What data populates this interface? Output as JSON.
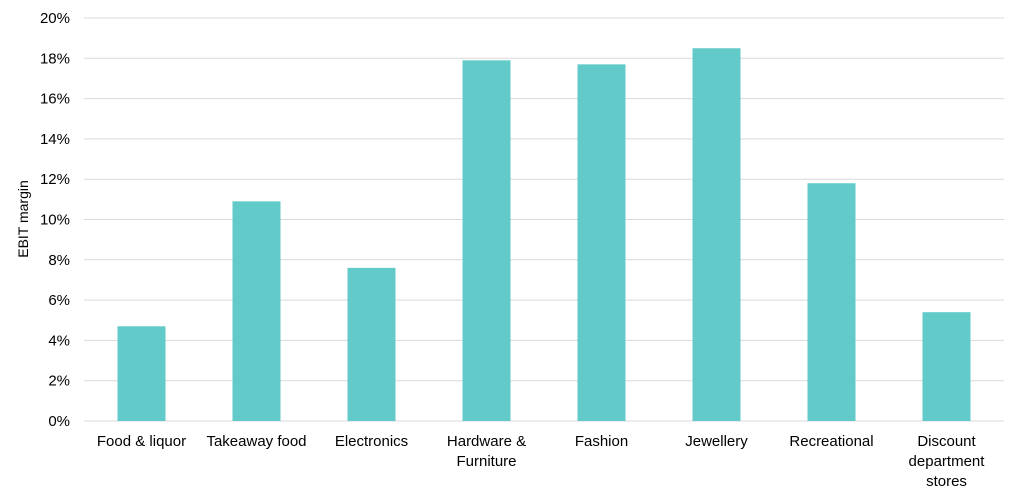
{
  "chart_data": {
    "type": "bar",
    "title": "",
    "xlabel": "",
    "ylabel": "EBIT margin",
    "categories": [
      "Food & liquor",
      "Takeaway food",
      "Electronics",
      "Hardware & Furniture",
      "Fashion",
      "Jewellery",
      "Recreational",
      "Discount department stores"
    ],
    "category_lines": [
      [
        "Food & liquor"
      ],
      [
        "Takeaway food"
      ],
      [
        "Electronics"
      ],
      [
        "Hardware &",
        "Furniture"
      ],
      [
        "Fashion"
      ],
      [
        "Jewellery"
      ],
      [
        "Recreational"
      ],
      [
        "Discount",
        "department",
        "stores"
      ]
    ],
    "values": [
      4.7,
      10.9,
      7.6,
      17.9,
      17.7,
      18.5,
      11.8,
      5.4
    ],
    "ylim": [
      0,
      20
    ],
    "yticks": [
      0,
      2,
      4,
      6,
      8,
      10,
      12,
      14,
      16,
      18,
      20
    ],
    "ytick_labels": [
      "0%",
      "2%",
      "4%",
      "6%",
      "8%",
      "10%",
      "12%",
      "14%",
      "16%",
      "18%",
      "20%"
    ],
    "grid": true,
    "legend": "none",
    "bar_color": "#62cbc9"
  }
}
